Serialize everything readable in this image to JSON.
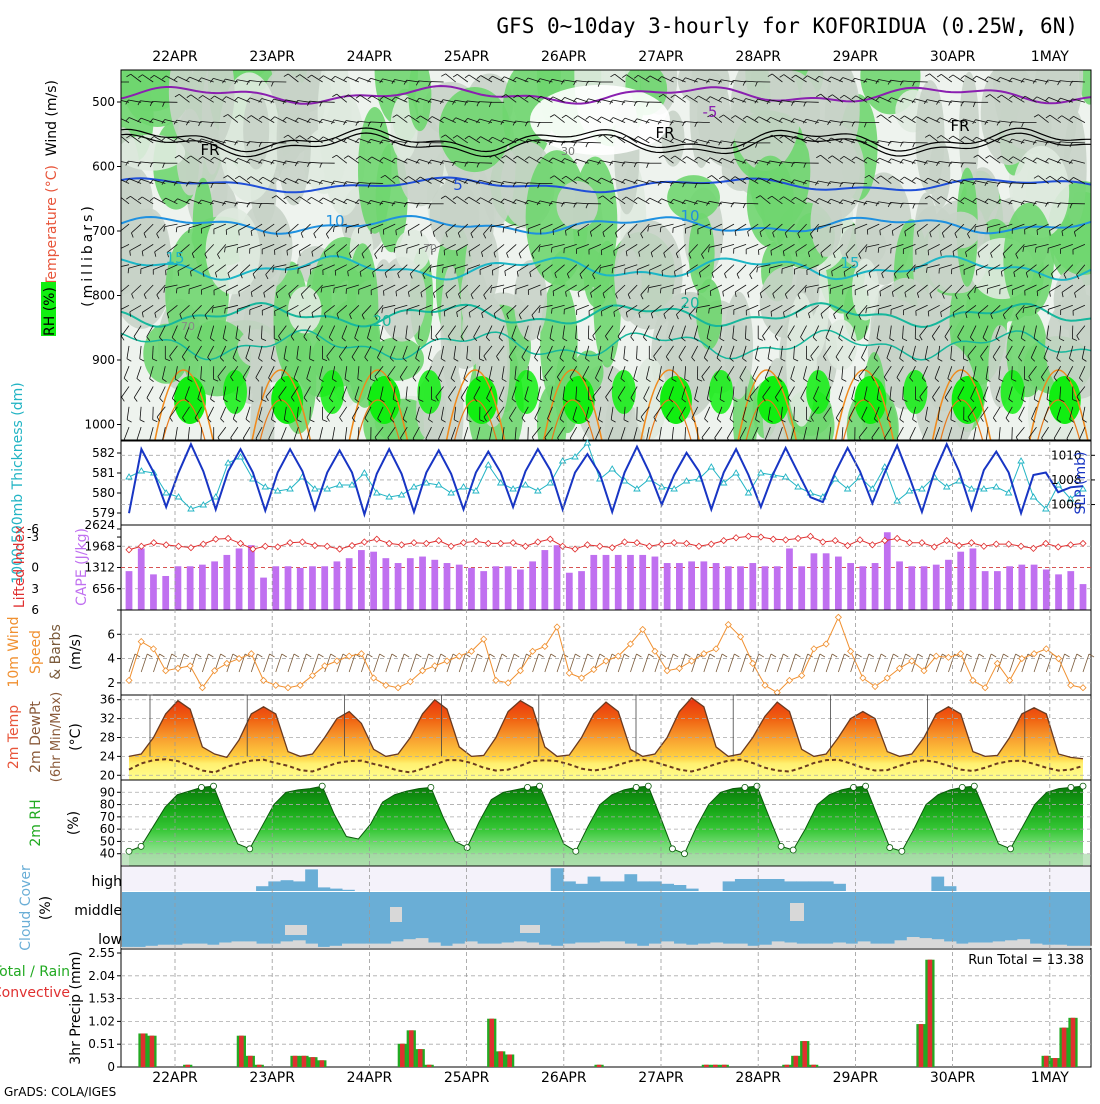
{
  "title": "GFS 0~10day 3-hourly for KOFORIDUA (0.25W, 6N)",
  "credit": "GrADS: COLA/IGES",
  "dates": [
    "22APR",
    "23APR",
    "24APR",
    "25APR",
    "26APR",
    "27APR",
    "28APR",
    "29APR",
    "30APR",
    "1MAY"
  ],
  "colors": {
    "rh_light": "#dfeadf",
    "rh_mid": "#c8d3c8",
    "rh_green": "#6fd66f",
    "rh_bright": "#11ee11",
    "t_minus5": "#8a1fb0",
    "t_fr": "#000000",
    "t_5": "#1f4fd8",
    "t_10": "#1e90e0",
    "t_15": "#1cb6c6",
    "t_20": "#16b79c",
    "t_warm": "#f08a1c",
    "slp": "#1835c4",
    "thickness": "#22b4c4",
    "cape": "#c070f0",
    "lifted": "#e03030",
    "wind10m": "#f09030",
    "barbs": "#7a5a3a",
    "rh2m": "#22aa22",
    "cloud": "#6aaed6",
    "precip_total": "#22aa22",
    "precip_conv": "#e03030"
  },
  "panels": {
    "upper": {
      "ylabel": "(millibars)",
      "side_labels": {
        "wind": "Wind (m/s)",
        "temperature": "Temperature (°C)",
        "rh": "RH (%)"
      },
      "levels": [
        "500",
        "600",
        "700",
        "800",
        "900",
        "1000"
      ],
      "contour_labels": [
        "-5",
        "FR",
        "FR",
        "FR",
        "5",
        "10",
        "10",
        "15",
        "15",
        "20",
        "20",
        "30",
        "70",
        "70"
      ]
    },
    "slp": {
      "left_label": "1000-500mb Thickness (dm)",
      "right_label": "SLP (mb)",
      "left_ticks": [
        "582",
        "581",
        "580",
        "579"
      ],
      "right_ticks": [
        "1010",
        "1008",
        "1006"
      ],
      "bottom_tick": "2624"
    },
    "cape": {
      "left_label": "Lifted Index",
      "right_label": "CAPE (J/kg)",
      "li_ticks": [
        "-3",
        "-6",
        "0",
        "3",
        "6"
      ],
      "cape_ticks": [
        "1968",
        "1312",
        "656"
      ]
    },
    "wind10m": {
      "label_line1": "10m Wind",
      "label_line2": "Speed",
      "label_line3": "& Barbs",
      "unit": "(m/s)",
      "ticks": [
        "6",
        "4",
        "2"
      ]
    },
    "temp2m": {
      "label_line1": "2m Temp",
      "label_line2": "2m DewPt",
      "label_line3": "(6hr Min/Max)",
      "unit": "(°C)",
      "ticks": [
        "36",
        "32",
        "28",
        "24",
        "20"
      ]
    },
    "rh2m": {
      "label": "2m RH",
      "unit": "(%)",
      "ticks": [
        "90",
        "80",
        "70",
        "60",
        "50",
        "40"
      ]
    },
    "cloud": {
      "label": "Cloud Cover",
      "unit": "(%)",
      "rows": [
        "high",
        "middle",
        "low"
      ]
    },
    "precip": {
      "label": "3hr Precip (mm)",
      "legend_total": "Total / Rain",
      "legend_conv": "Convective",
      "run_total": "Run Total = 13.38",
      "ticks": [
        "2.55",
        "2.04",
        "1.53",
        "1.02",
        "0.51",
        "0"
      ]
    }
  },
  "chart_data": [
    {
      "type": "line",
      "name": "slp",
      "unit": "mb",
      "ylim": [
        1004.5,
        1011
      ],
      "values": [
        1005.3,
        1010.5,
        1008.6,
        1005.8,
        1008.6,
        1010.9,
        1008.7,
        1005.6,
        1008.7,
        1010.5,
        1008.6,
        1005.5,
        1008.6,
        1010.5,
        1008.7,
        1005.6,
        1008.6,
        1010.4,
        1008.6,
        1005.2,
        1008.5,
        1010.5,
        1008.5,
        1005.4,
        1008.6,
        1010.4,
        1008.5,
        1005.6,
        1008.6,
        1010.3,
        1008.6,
        1005.8,
        1008.7,
        1010.5,
        1008.8,
        1005.6,
        1008.6,
        1010.1,
        1008.5,
        1005.4,
        1008.6,
        1010.7,
        1008.6,
        1006.0,
        1008.4,
        1010.2,
        1008.7,
        1005.6,
        1008.6,
        1010.5,
        1008.4,
        1005.8,
        1008.5,
        1010.6,
        1008.6,
        1006.6,
        1006.2,
        1008.6,
        1010.6,
        1008.7,
        1006.1,
        1008.6,
        1010.8,
        1008.2,
        1005.4,
        1008.6,
        1010.9,
        1008.7,
        1005.6,
        1008.8,
        1010.3,
        1008.6,
        1005.3,
        1008.4,
        1008.6,
        1007.0,
        1007.4,
        1007.5
      ]
    },
    {
      "type": "line",
      "name": "thickness",
      "unit": "dm",
      "ylim": [
        578.5,
        582.5
      ],
      "values": [
        580.8,
        581.1,
        581.0,
        580.0,
        579.8,
        579.2,
        579.4,
        579.8,
        581.5,
        581.8,
        580.7,
        580.3,
        580.1,
        580.2,
        580.8,
        580.2,
        580.2,
        580.4,
        580.4,
        581.0,
        580.0,
        579.8,
        579.9,
        580.3,
        580.5,
        580.4,
        580.0,
        580.3,
        580.1,
        581.4,
        580.5,
        580.2,
        580.4,
        580.1,
        580.5,
        581.6,
        581.8,
        582.5,
        580.7,
        581.2,
        580.6,
        580.2,
        580.7,
        580.3,
        580.2,
        580.6,
        580.7,
        581.3,
        580.5,
        581.0,
        580.0,
        581.0,
        580.9,
        580.8,
        580.3,
        580.0,
        579.8,
        580.7,
        580.2,
        580.8,
        580.2,
        581.3,
        579.6,
        580.1,
        580.2,
        580.8,
        580.3,
        580.6,
        580.2,
        580.2,
        580.3,
        580.0,
        581.6,
        579.8,
        579.2,
        580.4,
        579.7,
        580.2
      ]
    },
    {
      "type": "bar",
      "name": "cape",
      "unit": "J/kg",
      "ylim": [
        0,
        2624
      ],
      "values": [
        1200,
        1900,
        1100,
        1050,
        1350,
        1350,
        1400,
        1500,
        1700,
        1900,
        2000,
        1000,
        1350,
        1350,
        1300,
        1350,
        1350,
        1500,
        1600,
        1850,
        1800,
        1600,
        1450,
        1600,
        1650,
        1550,
        1450,
        1400,
        1300,
        1200,
        1350,
        1350,
        1250,
        1500,
        1850,
        2000,
        1150,
        1200,
        1700,
        1700,
        1700,
        1700,
        1700,
        1650,
        1450,
        1450,
        1500,
        1500,
        1450,
        1350,
        1350,
        1450,
        1350,
        1350,
        1900,
        1350,
        1750,
        1750,
        1650,
        1450,
        1350,
        1450,
        2400,
        1500,
        1350,
        1350,
        1400,
        1550,
        1800,
        1900,
        1200,
        1200,
        1350,
        1400,
        1400,
        1250,
        1100,
        1200,
        800
      ]
    },
    {
      "type": "line",
      "name": "lifted_index",
      "ylim": [
        -6,
        6
      ],
      "values": [
        -2.5,
        -3.0,
        -3.5,
        -3.2,
        -3.0,
        -2.8,
        -3.3,
        -4.0,
        -4.1,
        -3.4,
        -2.6,
        -3.0,
        -2.9,
        -3.5,
        -3.6,
        -3.1,
        -3.0,
        -2.6,
        -3.1,
        -3.6,
        -4.0,
        -3.4,
        -3.2,
        -3.5,
        -3.4,
        -3.8,
        -3.0,
        -3.5,
        -3.7,
        -3.4,
        -3.4,
        -3.5,
        -3.0,
        -3.6,
        -4.0,
        -3.0,
        -2.6,
        -3.2,
        -3.0,
        -2.8,
        -3.6,
        -3.5,
        -3.0,
        -3.3,
        -3.5,
        -3.4,
        -3.0,
        -3.3,
        -3.8,
        -4.2,
        -4.4,
        -4.3,
        -4.0,
        -3.9,
        -4.1,
        -4.4,
        -3.6,
        -3.8,
        -3.1,
        -3.9,
        -3.2,
        -3.8,
        -4.1,
        -3.5,
        -3.5,
        -2.9,
        -3.8,
        -3.1,
        -3.5,
        -3.0,
        -3.3,
        -3.3,
        -3.0,
        -2.7,
        -3.4,
        -2.9,
        -3.2,
        -3.4
      ]
    },
    {
      "type": "line",
      "name": "wind_speed_10m",
      "unit": "m/s",
      "ylim": [
        1,
        8
      ],
      "values": [
        2.2,
        5.4,
        4.8,
        3.0,
        3.2,
        3.4,
        1.6,
        3.0,
        3.6,
        4.0,
        4.4,
        2.2,
        1.8,
        1.6,
        1.8,
        2.6,
        3.4,
        3.8,
        4.2,
        4.4,
        2.4,
        1.8,
        1.6,
        2.1,
        3.0,
        3.4,
        3.8,
        4.2,
        4.6,
        5.6,
        2.2,
        2.0,
        3.0,
        4.6,
        5.0,
        6.6,
        2.8,
        2.4,
        3.1,
        3.8,
        4.2,
        5.2,
        6.4,
        4.6,
        3.0,
        3.2,
        3.8,
        4.4,
        4.8,
        6.8,
        5.8,
        3.6,
        1.8,
        1.2,
        2.2,
        2.6,
        4.8,
        5.2,
        7.4,
        4.6,
        2.4,
        1.7,
        2.4,
        3.2,
        3.8,
        3.0,
        4.2,
        4.1,
        4.4,
        2.2,
        1.6,
        3.6,
        2.2,
        4.0,
        4.4,
        4.8,
        4.0,
        1.8,
        1.6
      ]
    },
    {
      "type": "area",
      "name": "temp_2m",
      "unit": "°C",
      "ylim": [
        19,
        37
      ],
      "values": [
        24,
        24.5,
        28,
        33,
        35.8,
        34,
        26,
        24.5,
        23.8,
        27.5,
        33,
        34.5,
        33,
        25,
        24,
        24.5,
        28,
        32,
        33.5,
        31,
        25.5,
        24,
        24.5,
        28,
        33,
        36,
        34,
        26,
        24,
        24.2,
        28,
        33.5,
        35.8,
        34.3,
        26,
        24,
        24.3,
        28,
        33,
        35.5,
        33.5,
        25.5,
        24,
        24.5,
        28,
        33.5,
        36.4,
        34.5,
        26,
        24,
        24.5,
        28,
        32.5,
        35.5,
        33.5,
        25.5,
        24,
        24.5,
        28,
        32,
        33.5,
        32,
        25,
        24,
        24.5,
        28,
        33,
        34.5,
        33,
        25,
        24,
        24.2,
        28,
        33,
        34.3,
        33,
        24.5,
        23.8,
        23.5
      ]
    },
    {
      "type": "line",
      "name": "dewpoint_2m",
      "unit": "°C",
      "ylim": [
        19,
        37
      ],
      "values": [
        21.2,
        22.5,
        23.2,
        23.4,
        23.0,
        22.0,
        21.0,
        20.6,
        21.8,
        22.5,
        23.1,
        23.3,
        22.6,
        22.0,
        21.1,
        20.8,
        21.7,
        22.6,
        23.0,
        23.1,
        22.4,
        21.8,
        21.0,
        20.6,
        21.4,
        22.3,
        23.2,
        23.2,
        22.6,
        21.6,
        21.0,
        21.2,
        22.0,
        23.0,
        23.2,
        23.0,
        22.3,
        21.4,
        21.0,
        21.4,
        22.2,
        23.0,
        23.3,
        22.8,
        22.0,
        21.2,
        20.8,
        21.5,
        22.4,
        23.1,
        23.3,
        22.6,
        21.6,
        21.0,
        20.8,
        21.6,
        22.6,
        23.2,
        23.3,
        22.5,
        21.6,
        21.0,
        21.1,
        22.0,
        22.8,
        23.2,
        22.8,
        22.0,
        21.2,
        20.9,
        21.6,
        22.5,
        23.0,
        23.1,
        22.4,
        21.6,
        21.0,
        21.2,
        22.0
      ]
    },
    {
      "type": "area",
      "name": "rh_2m",
      "unit": "%",
      "ylim": [
        30,
        100
      ],
      "values": [
        42,
        46,
        62,
        78,
        88,
        91,
        94,
        95,
        70,
        48,
        44,
        62,
        80,
        90,
        92,
        93,
        95,
        72,
        54,
        52,
        64,
        82,
        88,
        91,
        93,
        94,
        70,
        50,
        45,
        66,
        84,
        90,
        92,
        94,
        95,
        72,
        48,
        42,
        62,
        80,
        88,
        92,
        94,
        95,
        70,
        44,
        40,
        62,
        80,
        90,
        93,
        94,
        95,
        70,
        46,
        43,
        60,
        80,
        88,
        92,
        94,
        95,
        70,
        45,
        42,
        60,
        80,
        88,
        92,
        94,
        95,
        72,
        48,
        44,
        62,
        80,
        90,
        93,
        94,
        95
      ]
    },
    {
      "type": "bar",
      "name": "cloud_high",
      "unit": "%",
      "ylim": [
        0,
        100
      ],
      "values": [
        0,
        0,
        0,
        0,
        0,
        0,
        0,
        0,
        0,
        0,
        0,
        20,
        40,
        45,
        40,
        90,
        15,
        10,
        5,
        0,
        0,
        0,
        0,
        0,
        0,
        0,
        0,
        0,
        0,
        0,
        0,
        0,
        0,
        0,
        0,
        95,
        40,
        30,
        60,
        40,
        40,
        70,
        40,
        40,
        30,
        25,
        10,
        0,
        0,
        40,
        50,
        50,
        50,
        50,
        40,
        40,
        40,
        40,
        30,
        0,
        0,
        0,
        0,
        0,
        0,
        0,
        60,
        20,
        0,
        0,
        0,
        0,
        0,
        0,
        0,
        0,
        0,
        0,
        0
      ]
    },
    {
      "type": "bar",
      "name": "cloud_low",
      "unit": "%",
      "ylim": [
        0,
        100
      ],
      "values": [
        5,
        5,
        10,
        15,
        15,
        20,
        20,
        15,
        25,
        30,
        30,
        20,
        20,
        30,
        35,
        20,
        5,
        10,
        20,
        20,
        20,
        20,
        30,
        40,
        45,
        25,
        10,
        20,
        30,
        20,
        20,
        25,
        30,
        25,
        15,
        10,
        20,
        25,
        25,
        30,
        30,
        20,
        10,
        20,
        30,
        20,
        15,
        20,
        25,
        20,
        20,
        10,
        15,
        30,
        25,
        20,
        20,
        20,
        25,
        20,
        30,
        20,
        20,
        35,
        50,
        45,
        40,
        30,
        20,
        25,
        25,
        30,
        35,
        40,
        20,
        15,
        15,
        10,
        10
      ]
    },
    {
      "type": "bar",
      "name": "precip_total",
      "unit": "mm",
      "ylim": [
        0,
        2.55
      ],
      "values": [
        0.75,
        0.7,
        0,
        0,
        0,
        0.05,
        0,
        0,
        0,
        0,
        0,
        0.7,
        0.25,
        0.05,
        0,
        0,
        0,
        0.25,
        0.25,
        0.22,
        0.15,
        0,
        0,
        0,
        0,
        0,
        0,
        0,
        0,
        0.52,
        0.82,
        0.4,
        0.05,
        0,
        0,
        0,
        0,
        0,
        0,
        1.08,
        0.35,
        0.28,
        0,
        0,
        0,
        0,
        0,
        0,
        0,
        0,
        0,
        0.05,
        0,
        0,
        0,
        0,
        0,
        0,
        0,
        0,
        0,
        0,
        0,
        0.05,
        0.05,
        0.05,
        0,
        0,
        0,
        0,
        0,
        0,
        0.05,
        0.25,
        0.58,
        0.05,
        0,
        0,
        0,
        0,
        0,
        0,
        0,
        0,
        0,
        0,
        0,
        0.96,
        2.4,
        0,
        0,
        0,
        0,
        0,
        0,
        0,
        0,
        0,
        0,
        0,
        0,
        0.25,
        0.2,
        0.88,
        1.1
      ]
    }
  ]
}
